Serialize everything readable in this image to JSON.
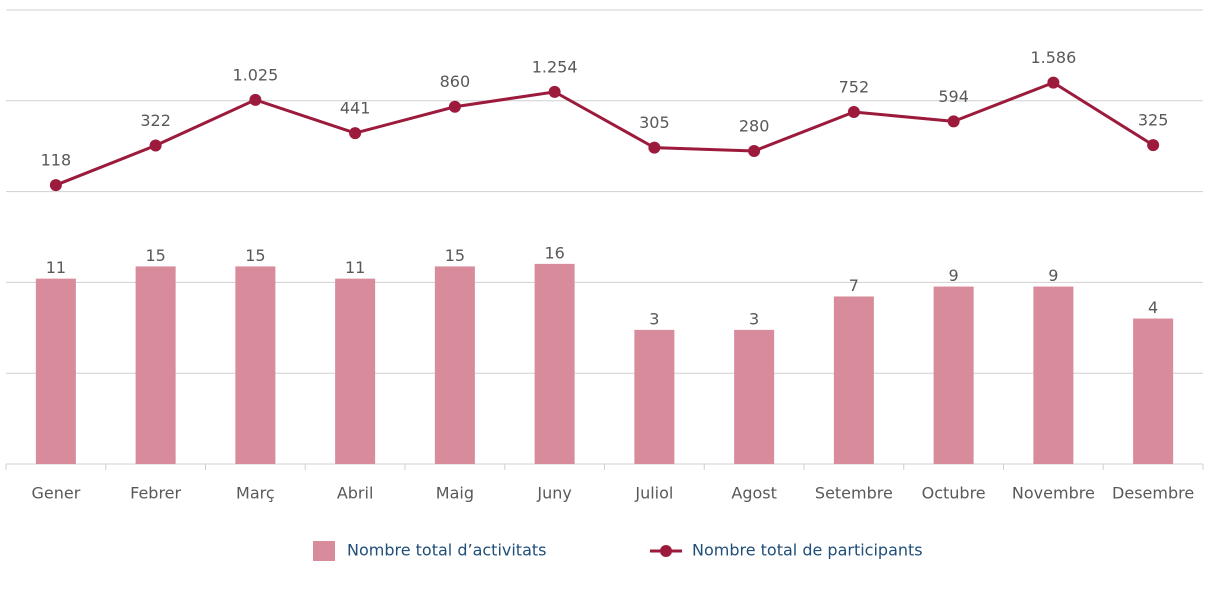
{
  "chart_data": {
    "type": "bar-line",
    "categories": [
      "Gener",
      "Febrer",
      "Març",
      "Abril",
      "Maig",
      "Juny",
      "Juliol",
      "Agost",
      "Setembre",
      "Octubre",
      "Novembre",
      "Desembre"
    ],
    "log_scale": true,
    "ylim": [
      0.1,
      10000
    ],
    "yticks": [
      0.1,
      1,
      10,
      100,
      1000,
      10000
    ],
    "grid": true,
    "legend": "bottom",
    "series": [
      {
        "name": "Nombre total d’activitats",
        "type": "bar",
        "color": "#d78b9b",
        "values": [
          11,
          15,
          15,
          11,
          15,
          16,
          3,
          3,
          7,
          9,
          9,
          4
        ]
      },
      {
        "name": "Nombre total de participants",
        "type": "line",
        "color": "#9c1a3c",
        "values": [
          118,
          322,
          1025,
          441,
          860,
          1254,
          305,
          280,
          752,
          594,
          1586,
          325
        ],
        "value_labels": [
          "118",
          "322",
          "1.025",
          "441",
          "860",
          "1.254",
          "305",
          "280",
          "752",
          "594",
          "1.586",
          "325"
        ]
      }
    ]
  }
}
